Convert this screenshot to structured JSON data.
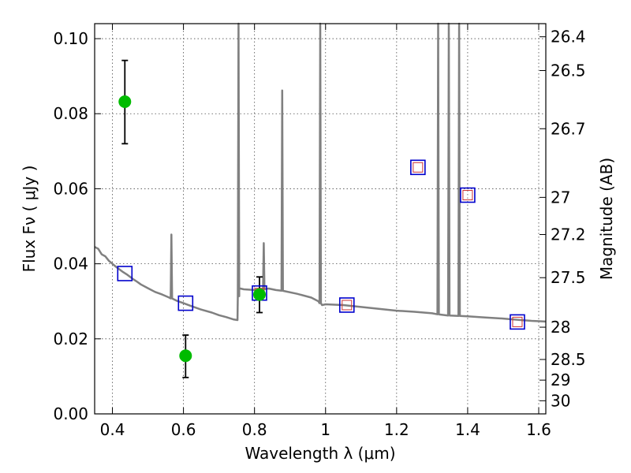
{
  "chart_data": {
    "type": "scatter",
    "title": "",
    "xlabel": "Wavelength  λ (μm)",
    "ylabel": "Flux  Fν  ( μJy )",
    "y2label": "Magnitude (AB)",
    "xlim": [
      0.35,
      1.62
    ],
    "ylim": [
      0.0,
      0.104
    ],
    "xticks": [
      0.4,
      0.6,
      0.8,
      1.0,
      1.2,
      1.4,
      1.6
    ],
    "xtick_labels": [
      "0.4",
      "0.6",
      "0.8",
      "1",
      "1.2",
      "1.4",
      "1.6"
    ],
    "yticks": [
      0.0,
      0.02,
      0.04,
      0.06,
      0.08,
      0.1
    ],
    "ytick_labels": [
      "0.00",
      "0.02",
      "0.04",
      "0.06",
      "0.08",
      "0.10"
    ],
    "y2ticks": [
      {
        "label": "26.4",
        "flux": 0.1005
      },
      {
        "label": "26.5",
        "flux": 0.0915
      },
      {
        "label": "26.7",
        "flux": 0.076
      },
      {
        "label": "27",
        "flux": 0.0577
      },
      {
        "label": "27.2",
        "flux": 0.0478
      },
      {
        "label": "27.5",
        "flux": 0.0363
      },
      {
        "label": "28",
        "flux": 0.0231
      },
      {
        "label": "28.5",
        "flux": 0.0145
      },
      {
        "label": "29",
        "flux": 0.009
      },
      {
        "label": "30",
        "flux": 0.0035
      }
    ],
    "grid": true,
    "colors": {
      "model": "#808080",
      "observed": "#00bb00",
      "errorbar": "#000000",
      "model_box": "#0000cc",
      "model_inner": "#cc3333"
    },
    "model_spectrum": {
      "continuum": [
        [
          0.35,
          0.0445
        ],
        [
          0.36,
          0.044
        ],
        [
          0.37,
          0.0425
        ],
        [
          0.38,
          0.042
        ],
        [
          0.39,
          0.0408
        ],
        [
          0.4,
          0.04
        ],
        [
          0.41,
          0.0392
        ],
        [
          0.42,
          0.0385
        ],
        [
          0.43,
          0.0378
        ],
        [
          0.44,
          0.0372
        ],
        [
          0.45,
          0.0365
        ],
        [
          0.46,
          0.0358
        ],
        [
          0.47,
          0.0352
        ],
        [
          0.48,
          0.0345
        ],
        [
          0.5,
          0.0335
        ],
        [
          0.52,
          0.0325
        ],
        [
          0.54,
          0.0318
        ],
        [
          0.56,
          0.031
        ],
        [
          0.58,
          0.0302
        ],
        [
          0.6,
          0.0295
        ],
        [
          0.62,
          0.0288
        ],
        [
          0.65,
          0.0278
        ],
        [
          0.68,
          0.027
        ],
        [
          0.7,
          0.0263
        ],
        [
          0.72,
          0.0258
        ],
        [
          0.74,
          0.0252
        ],
        [
          0.752,
          0.025
        ],
        [
          0.756,
          0.0335
        ],
        [
          0.77,
          0.0332
        ],
        [
          0.8,
          0.033
        ],
        [
          0.84,
          0.0334
        ],
        [
          0.86,
          0.033
        ],
        [
          0.88,
          0.0328
        ],
        [
          0.92,
          0.032
        ],
        [
          0.96,
          0.031
        ],
        [
          0.98,
          0.03
        ],
        [
          0.99,
          0.029
        ],
        [
          1.0,
          0.0292
        ],
        [
          1.05,
          0.029
        ],
        [
          1.1,
          0.0285
        ],
        [
          1.15,
          0.028
        ],
        [
          1.2,
          0.0275
        ],
        [
          1.25,
          0.0272
        ],
        [
          1.3,
          0.0268
        ],
        [
          1.32,
          0.0265
        ],
        [
          1.35,
          0.0262
        ],
        [
          1.4,
          0.026
        ],
        [
          1.45,
          0.0257
        ],
        [
          1.5,
          0.0254
        ],
        [
          1.55,
          0.025
        ],
        [
          1.58,
          0.0248
        ],
        [
          1.62,
          0.0246
        ]
      ],
      "emission_lines": [
        {
          "x": 0.566,
          "peak": 0.0478
        },
        {
          "x": 0.755,
          "peak": 0.104
        },
        {
          "x": 0.826,
          "peak": 0.0455
        },
        {
          "x": 0.878,
          "peak": 0.0862
        },
        {
          "x": 0.985,
          "peak": 0.104
        },
        {
          "x": 1.317,
          "peak": 0.104
        },
        {
          "x": 1.347,
          "peak": 0.104
        },
        {
          "x": 1.376,
          "peak": 0.104
        }
      ]
    },
    "model_photometry": [
      {
        "x": 0.435,
        "y": 0.0374,
        "inner": false
      },
      {
        "x": 0.606,
        "y": 0.0295,
        "inner": false
      },
      {
        "x": 0.814,
        "y": 0.0322,
        "inner": true
      },
      {
        "x": 1.06,
        "y": 0.029,
        "inner": true
      },
      {
        "x": 1.26,
        "y": 0.0657,
        "inner": true
      },
      {
        "x": 1.4,
        "y": 0.0583,
        "inner": true
      },
      {
        "x": 1.54,
        "y": 0.0245,
        "inner": true
      }
    ],
    "observed": [
      {
        "x": 0.435,
        "y": 0.0832,
        "err_low": 0.072,
        "err_high": 0.0942
      },
      {
        "x": 0.606,
        "y": 0.0155,
        "err_low": 0.0097,
        "err_high": 0.021
      },
      {
        "x": 0.814,
        "y": 0.0318,
        "err_low": 0.027,
        "err_high": 0.0365
      }
    ]
  }
}
